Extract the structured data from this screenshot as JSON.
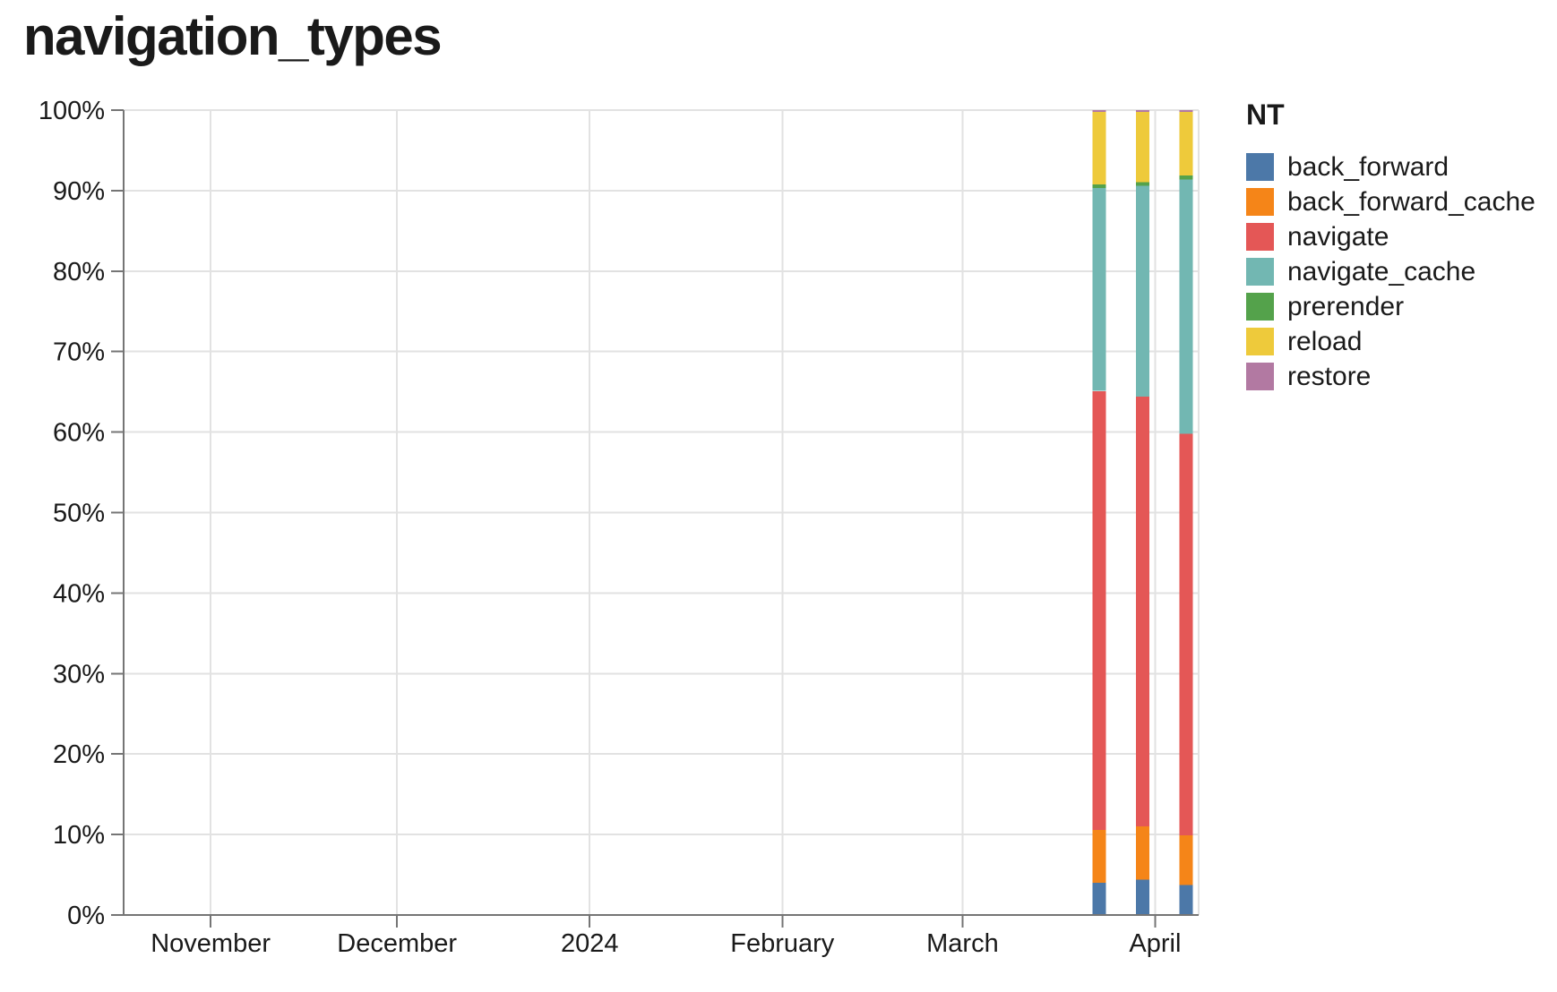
{
  "chart_data": {
    "type": "bar",
    "stacked": true,
    "normalized_percent": true,
    "title": "navigation_types",
    "legend": {
      "title": "NT",
      "position": "right"
    },
    "grid": true,
    "x_axis": {
      "scale": "time",
      "domain": [
        "2023-10-18",
        "2024-04-08"
      ],
      "ticks": [
        {
          "label": "November",
          "date": "2023-11-01"
        },
        {
          "label": "December",
          "date": "2023-12-01"
        },
        {
          "label": "2024",
          "date": "2024-01-01"
        },
        {
          "label": "February",
          "date": "2024-02-01"
        },
        {
          "label": "March",
          "date": "2024-03-01"
        },
        {
          "label": "April",
          "date": "2024-04-01"
        }
      ]
    },
    "y_axis": {
      "min": 0,
      "max": 100,
      "step": 10,
      "ticks": [
        {
          "label": "0%",
          "value": 0
        },
        {
          "label": "10%",
          "value": 10
        },
        {
          "label": "20%",
          "value": 20
        },
        {
          "label": "30%",
          "value": 30
        },
        {
          "label": "40%",
          "value": 40
        },
        {
          "label": "50%",
          "value": 50
        },
        {
          "label": "60%",
          "value": 60
        },
        {
          "label": "70%",
          "value": 70
        },
        {
          "label": "80%",
          "value": 80
        },
        {
          "label": "90%",
          "value": 90
        },
        {
          "label": "100%",
          "value": 100
        }
      ]
    },
    "series": [
      {
        "name": "back_forward",
        "color": "#4c78a8"
      },
      {
        "name": "back_forward_cache",
        "color": "#f58518"
      },
      {
        "name": "navigate",
        "color": "#e45756"
      },
      {
        "name": "navigate_cache",
        "color": "#72b7b2"
      },
      {
        "name": "prerender",
        "color": "#54a24b"
      },
      {
        "name": "reload",
        "color": "#eeca3b"
      },
      {
        "name": "restore",
        "color": "#b279a2"
      }
    ],
    "bars": [
      {
        "date": "2024-03-23",
        "segments": {
          "back_forward": 4.0,
          "back_forward_cache": 6.6,
          "navigate": 54.5,
          "navigate_cache": 25.2,
          "prerender": 0.45,
          "reload": 9.0,
          "restore": 0.25
        }
      },
      {
        "date": "2024-03-30",
        "segments": {
          "back_forward": 4.4,
          "back_forward_cache": 6.6,
          "navigate": 53.4,
          "navigate_cache": 26.2,
          "prerender": 0.45,
          "reload": 8.7,
          "restore": 0.25
        }
      },
      {
        "date": "2024-04-06",
        "segments": {
          "back_forward": 3.7,
          "back_forward_cache": 6.2,
          "navigate": 49.9,
          "navigate_cache": 31.6,
          "prerender": 0.5,
          "reload": 7.85,
          "restore": 0.25
        }
      }
    ],
    "colors": {
      "grid": "#e2e2e2",
      "axis": "#757575",
      "label": "#1a1a1a"
    }
  }
}
